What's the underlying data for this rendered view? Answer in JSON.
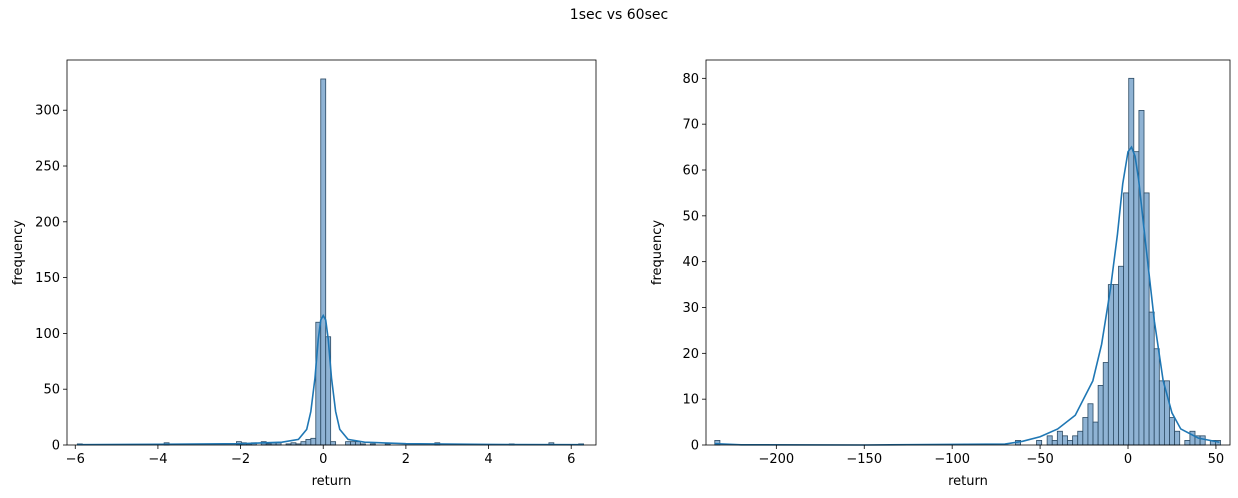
{
  "figure": {
    "suptitle": "1sec vs 60sec"
  },
  "colors": {
    "bar_fill": "#8fb3d4",
    "bar_edge": "#2b4a63",
    "kde": "#1f77b4"
  },
  "chart_data": [
    {
      "type": "bar",
      "subtype": "histogram_with_kde",
      "title": "",
      "xlabel": "return",
      "ylabel": "frequency",
      "xlim": [
        -6.2,
        6.6
      ],
      "ylim": [
        0,
        345
      ],
      "xticks": [
        -6,
        -4,
        -2,
        0,
        2,
        4,
        6
      ],
      "xtick_labels": [
        "−6",
        "−4",
        "−2",
        "0",
        "2",
        "4",
        "6"
      ],
      "yticks": [
        0,
        50,
        100,
        150,
        200,
        250,
        300
      ],
      "ytick_labels": [
        "0",
        "50",
        "100",
        "150",
        "200",
        "250",
        "300"
      ],
      "grid": false,
      "bins": [
        {
          "x0": -5.95,
          "x1": -5.83,
          "count": 1
        },
        {
          "x0": -3.85,
          "x1": -3.73,
          "count": 2
        },
        {
          "x0": -2.1,
          "x1": -1.98,
          "count": 3
        },
        {
          "x0": -1.98,
          "x1": -1.86,
          "count": 2
        },
        {
          "x0": -1.86,
          "x1": -1.74,
          "count": 1
        },
        {
          "x0": -1.74,
          "x1": -1.62,
          "count": 2
        },
        {
          "x0": -1.5,
          "x1": -1.38,
          "count": 3
        },
        {
          "x0": -1.38,
          "x1": -1.26,
          "count": 1
        },
        {
          "x0": -1.26,
          "x1": -1.14,
          "count": 2
        },
        {
          "x0": -1.14,
          "x1": -1.02,
          "count": 2
        },
        {
          "x0": -0.9,
          "x1": -0.78,
          "count": 1
        },
        {
          "x0": -0.78,
          "x1": -0.66,
          "count": 2
        },
        {
          "x0": -0.66,
          "x1": -0.54,
          "count": 1
        },
        {
          "x0": -0.54,
          "x1": -0.42,
          "count": 3
        },
        {
          "x0": -0.42,
          "x1": -0.3,
          "count": 5
        },
        {
          "x0": -0.3,
          "x1": -0.18,
          "count": 6
        },
        {
          "x0": -0.18,
          "x1": -0.06,
          "count": 110
        },
        {
          "x0": -0.06,
          "x1": 0.06,
          "count": 328
        },
        {
          "x0": 0.06,
          "x1": 0.18,
          "count": 97
        },
        {
          "x0": 0.18,
          "x1": 0.3,
          "count": 3
        },
        {
          "x0": 0.54,
          "x1": 0.66,
          "count": 3
        },
        {
          "x0": 0.66,
          "x1": 0.78,
          "count": 3
        },
        {
          "x0": 0.78,
          "x1": 0.9,
          "count": 3
        },
        {
          "x0": 0.9,
          "x1": 1.02,
          "count": 1
        },
        {
          "x0": 1.14,
          "x1": 1.26,
          "count": 1
        },
        {
          "x0": 1.5,
          "x1": 1.62,
          "count": 1
        },
        {
          "x0": 2.7,
          "x1": 2.82,
          "count": 2
        },
        {
          "x0": 4.5,
          "x1": 4.62,
          "count": 1
        },
        {
          "x0": 5.46,
          "x1": 5.58,
          "count": 2
        },
        {
          "x0": 6.18,
          "x1": 6.3,
          "count": 1
        }
      ],
      "kde": {
        "x": [
          -5.95,
          -4,
          -2,
          -1,
          -0.6,
          -0.4,
          -0.3,
          -0.2,
          -0.12,
          -0.06,
          0,
          0.06,
          0.12,
          0.2,
          0.3,
          0.4,
          0.6,
          1,
          2,
          4,
          6.3
        ],
        "y": [
          0.3,
          0.6,
          1.2,
          2.5,
          5,
          14,
          30,
          60,
          95,
          112,
          116,
          112,
          95,
          60,
          30,
          14,
          5,
          2.5,
          1.2,
          0.5,
          0.3
        ]
      }
    },
    {
      "type": "bar",
      "subtype": "histogram_with_kde",
      "title": "",
      "xlabel": "return",
      "ylabel": "frequency",
      "xlim": [
        -240,
        58
      ],
      "ylim": [
        0,
        84
      ],
      "xticks": [
        -200,
        -150,
        -100,
        -50,
        0,
        50
      ],
      "xtick_labels": [
        "−200",
        "−150",
        "−100",
        "−50",
        "0",
        "50"
      ],
      "yticks": [
        0,
        10,
        20,
        30,
        40,
        50,
        60,
        70,
        80
      ],
      "ytick_labels": [
        "0",
        "10",
        "20",
        "30",
        "40",
        "50",
        "60",
        "70",
        "80"
      ],
      "grid": false,
      "bins": [
        {
          "x0": -235,
          "x1": -232.1,
          "count": 1
        },
        {
          "x0": -64.0,
          "x1": -61.1,
          "count": 1
        },
        {
          "x0": -52.0,
          "x1": -49.1,
          "count": 1
        },
        {
          "x0": -46.0,
          "x1": -43.1,
          "count": 2
        },
        {
          "x0": -43.1,
          "x1": -40.2,
          "count": 1
        },
        {
          "x0": -40.2,
          "x1": -37.3,
          "count": 3
        },
        {
          "x0": -37.3,
          "x1": -34.4,
          "count": 2
        },
        {
          "x0": -34.4,
          "x1": -31.5,
          "count": 1
        },
        {
          "x0": -31.5,
          "x1": -28.6,
          "count": 2
        },
        {
          "x0": -28.6,
          "x1": -25.7,
          "count": 3
        },
        {
          "x0": -25.7,
          "x1": -22.8,
          "count": 6
        },
        {
          "x0": -22.8,
          "x1": -19.9,
          "count": 9
        },
        {
          "x0": -19.9,
          "x1": -17.0,
          "count": 5
        },
        {
          "x0": -17.0,
          "x1": -14.1,
          "count": 13
        },
        {
          "x0": -14.1,
          "x1": -11.2,
          "count": 18
        },
        {
          "x0": -11.2,
          "x1": -8.3,
          "count": 35
        },
        {
          "x0": -8.3,
          "x1": -5.4,
          "count": 35
        },
        {
          "x0": -5.4,
          "x1": -2.5,
          "count": 39
        },
        {
          "x0": -2.5,
          "x1": 0.4,
          "count": 55
        },
        {
          "x0": 0.4,
          "x1": 3.3,
          "count": 80
        },
        {
          "x0": 3.3,
          "x1": 6.2,
          "count": 64
        },
        {
          "x0": 6.2,
          "x1": 9.1,
          "count": 73
        },
        {
          "x0": 9.1,
          "x1": 12.0,
          "count": 55
        },
        {
          "x0": 12.0,
          "x1": 14.9,
          "count": 29
        },
        {
          "x0": 14.9,
          "x1": 17.8,
          "count": 21
        },
        {
          "x0": 17.8,
          "x1": 20.7,
          "count": 14
        },
        {
          "x0": 20.7,
          "x1": 23.6,
          "count": 14
        },
        {
          "x0": 23.6,
          "x1": 26.5,
          "count": 6
        },
        {
          "x0": 26.5,
          "x1": 29.4,
          "count": 3
        },
        {
          "x0": 32.3,
          "x1": 35.2,
          "count": 1
        },
        {
          "x0": 35.2,
          "x1": 38.1,
          "count": 3
        },
        {
          "x0": 38.1,
          "x1": 41.0,
          "count": 2
        },
        {
          "x0": 41.0,
          "x1": 43.9,
          "count": 2
        },
        {
          "x0": 46.8,
          "x1": 49.7,
          "count": 1
        },
        {
          "x0": 49.7,
          "x1": 52.6,
          "count": 1
        }
      ],
      "kde": {
        "x": [
          -235,
          -230,
          -220,
          -150,
          -70,
          -60,
          -50,
          -40,
          -30,
          -20,
          -15,
          -10,
          -6,
          -3,
          0,
          2,
          4,
          6,
          10,
          15,
          20,
          25,
          30,
          40,
          52
        ],
        "y": [
          0.3,
          0.2,
          0.05,
          0,
          0.2,
          0.8,
          1.8,
          3.5,
          6.5,
          14,
          22,
          34,
          46,
          57,
          64,
          65,
          63,
          58,
          44,
          27,
          14,
          7,
          3.5,
          1.5,
          0.6
        ]
      }
    }
  ]
}
